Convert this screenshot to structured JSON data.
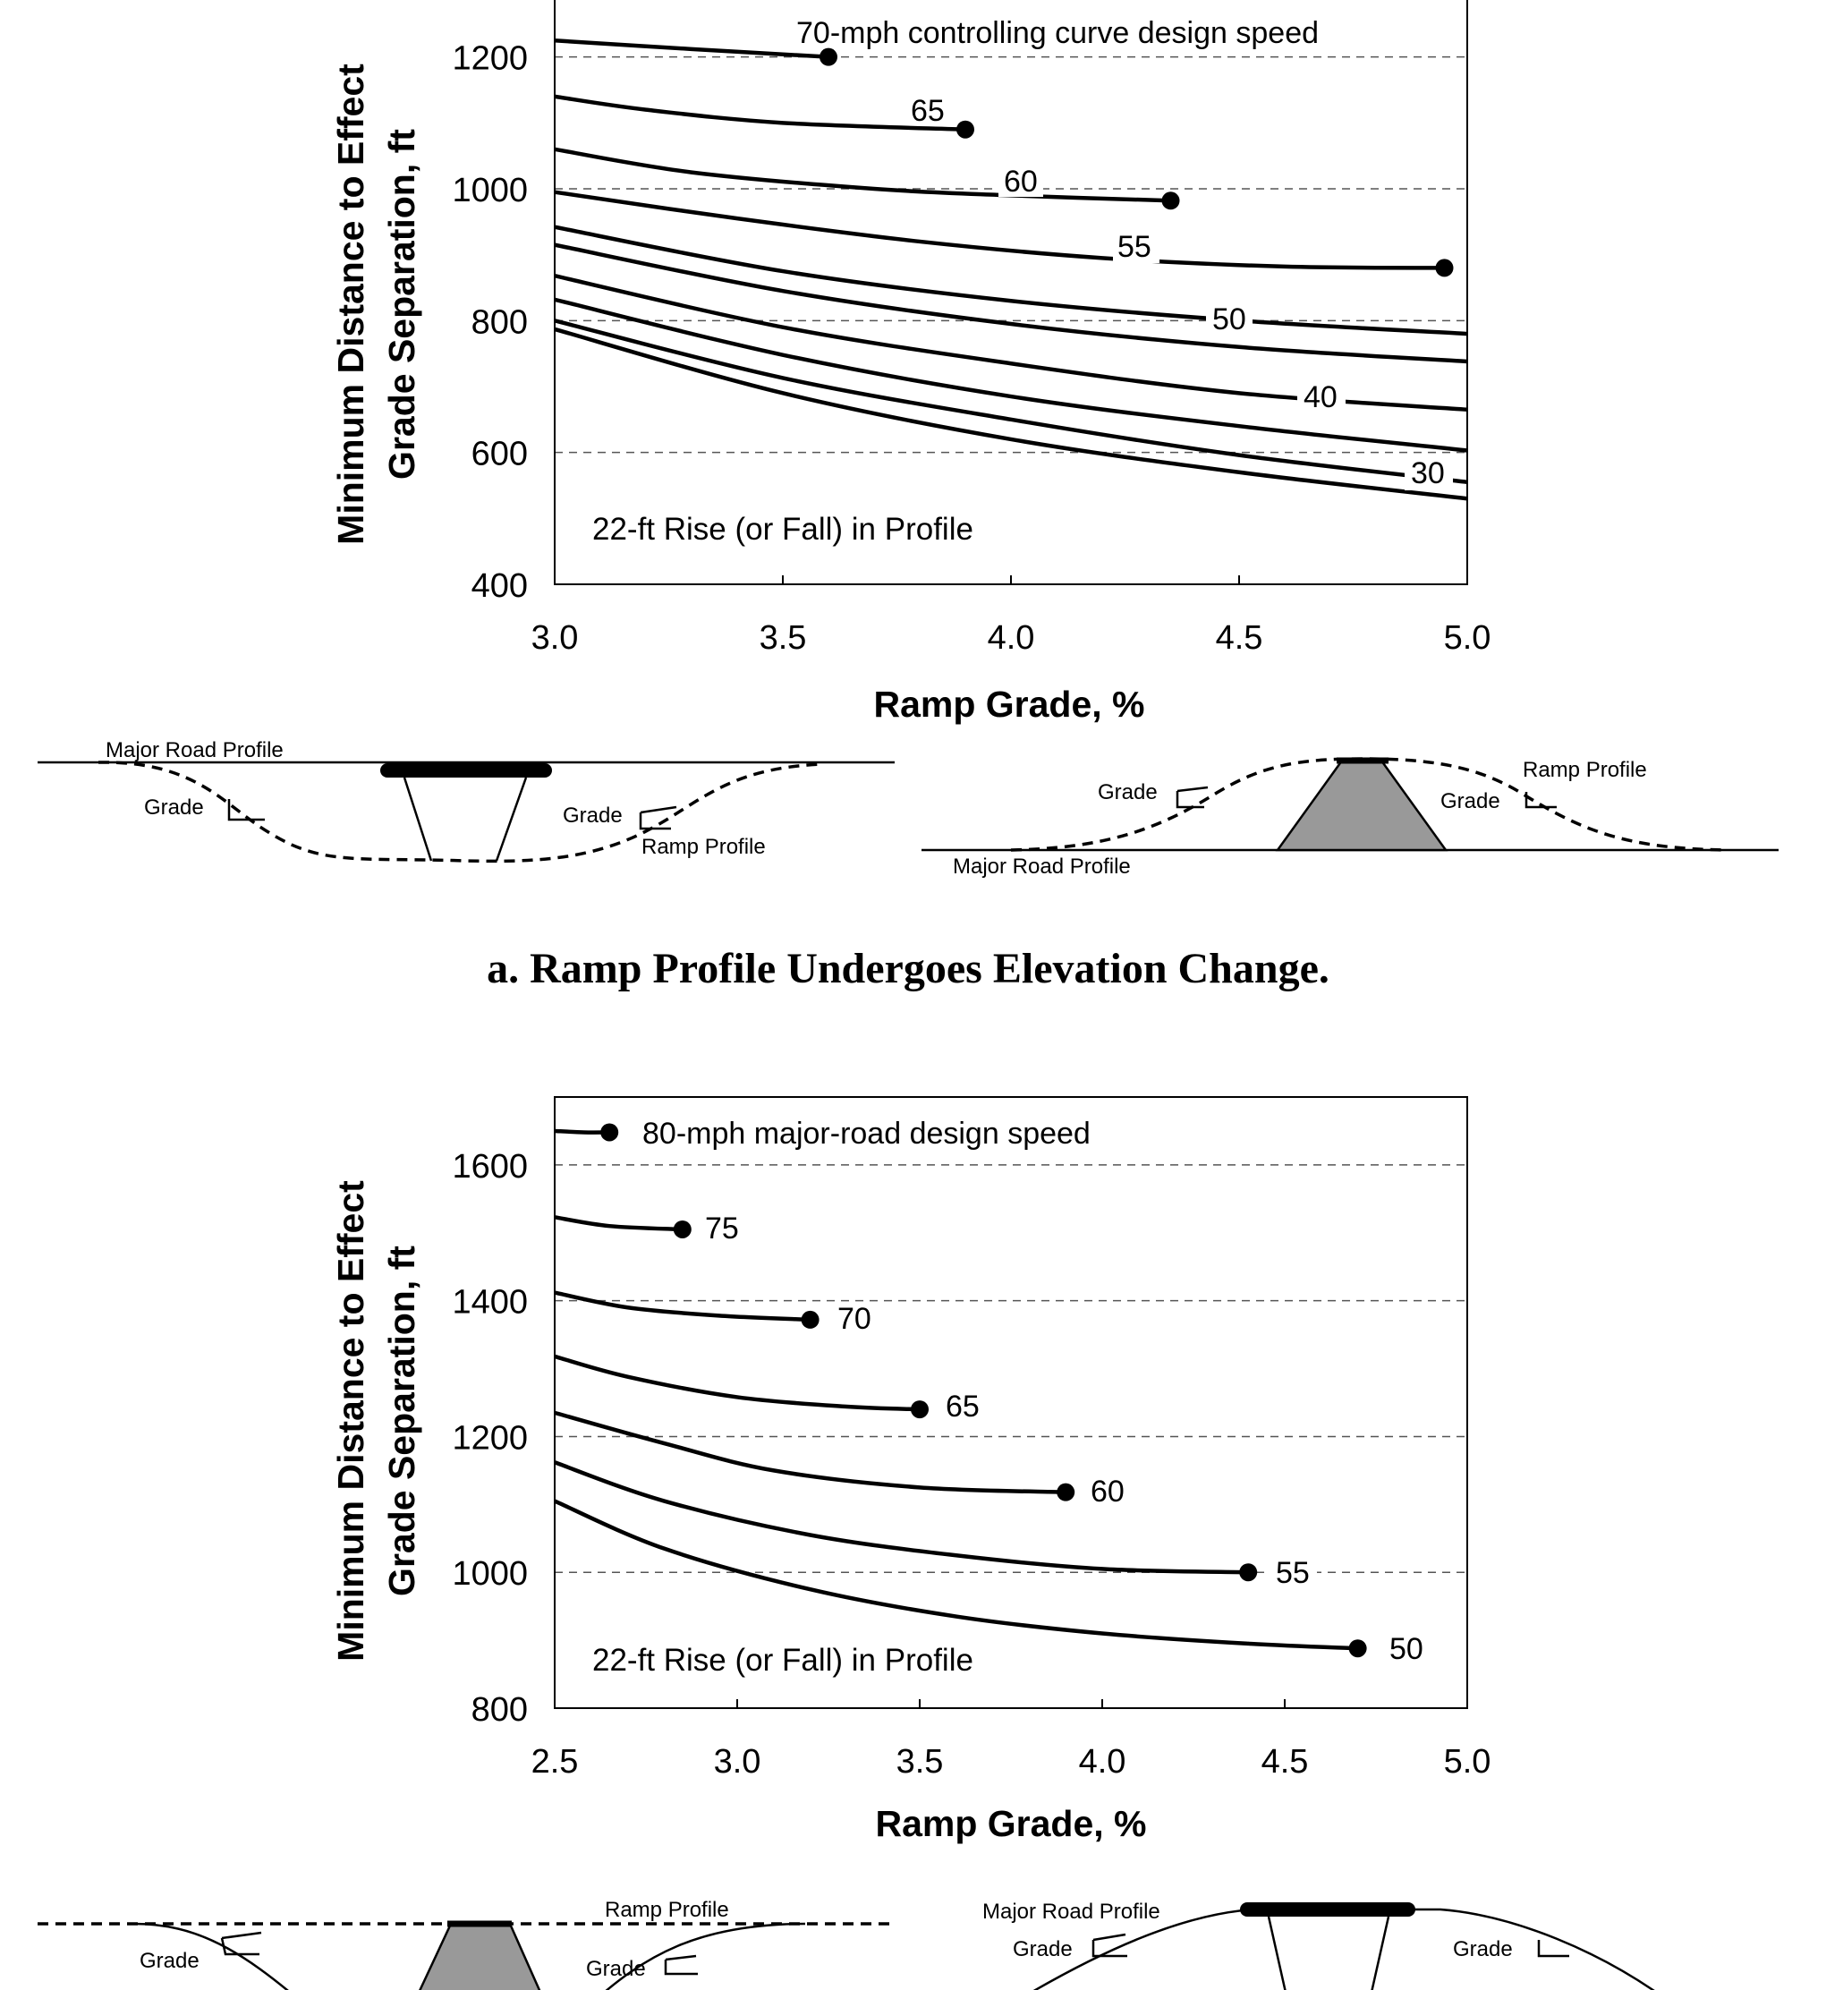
{
  "chart_data": [
    {
      "type": "line",
      "title": "",
      "xlabel": "Ramp Grade, %",
      "ylabel_line1": "Minimum Distance to Effect",
      "ylabel_line2": "Grade Separation, ft",
      "xlim": [
        3.0,
        5.0
      ],
      "ylim": [
        400,
        1300
      ],
      "x_ticks": [
        "3.0",
        "3.5",
        "4.0",
        "4.5",
        "5.0"
      ],
      "y_ticks": [
        "400",
        "600",
        "800",
        "1000",
        "1200"
      ],
      "gridlines_y": [
        600,
        800,
        1000,
        1200
      ],
      "note": "22-ft Rise (or Fall) in Profile",
      "series": [
        {
          "name": "70-mph controlling curve design speed",
          "x": [
            3.0,
            3.3,
            3.6
          ],
          "y": [
            1225,
            1212,
            1200
          ],
          "endpoint": true
        },
        {
          "name": "65",
          "x": [
            3.0,
            3.2,
            3.5,
            3.9
          ],
          "y": [
            1140,
            1120,
            1100,
            1090
          ],
          "endpoint": true
        },
        {
          "name": "60",
          "x": [
            3.0,
            3.3,
            3.7,
            4.0,
            4.35
          ],
          "y": [
            1060,
            1025,
            1000,
            990,
            982
          ],
          "endpoint": true
        },
        {
          "name": "55",
          "x": [
            3.0,
            3.4,
            3.8,
            4.2,
            4.6,
            4.95
          ],
          "y": [
            995,
            955,
            920,
            895,
            882,
            880
          ],
          "endpoint": true
        },
        {
          "name": "50",
          "x": [
            3.0,
            3.5,
            4.0,
            4.5,
            5.0
          ],
          "y": [
            942,
            875,
            830,
            800,
            780
          ]
        },
        {
          "name": "",
          "x": [
            3.0,
            3.5,
            4.0,
            4.5,
            5.0
          ],
          "y": [
            915,
            845,
            795,
            760,
            738
          ]
        },
        {
          "name": "40",
          "x": [
            3.0,
            3.5,
            4.0,
            4.5,
            5.0
          ],
          "y": [
            868,
            790,
            735,
            690,
            665
          ]
        },
        {
          "name": "",
          "x": [
            3.0,
            3.5,
            4.0,
            4.5,
            5.0
          ],
          "y": [
            832,
            748,
            685,
            640,
            603
          ]
        },
        {
          "name": "30",
          "x": [
            3.0,
            3.5,
            4.0,
            4.5,
            5.0
          ],
          "y": [
            800,
            713,
            650,
            596,
            555
          ]
        },
        {
          "name": "",
          "x": [
            3.0,
            3.5,
            4.0,
            4.5,
            5.0
          ],
          "y": [
            787,
            690,
            620,
            570,
            530
          ]
        }
      ]
    },
    {
      "type": "line",
      "title": "",
      "xlabel": "Ramp Grade, %",
      "ylabel_line1": "Minimum Distance to Effect",
      "ylabel_line2": "Grade Separation, ft",
      "xlim": [
        2.5,
        5.0
      ],
      "ylim": [
        800,
        1700
      ],
      "x_ticks": [
        "2.5",
        "3.0",
        "3.5",
        "4.0",
        "4.5",
        "5.0"
      ],
      "y_ticks": [
        "800",
        "1000",
        "1200",
        "1400",
        "1600"
      ],
      "gridlines_y": [
        1000,
        1200,
        1400,
        1600
      ],
      "note": "22-ft Rise (or Fall) in Profile",
      "series": [
        {
          "name": "80-mph major-road design speed",
          "x": [
            2.5,
            2.58,
            2.65
          ],
          "y": [
            1650,
            1648,
            1648
          ],
          "endpoint": true
        },
        {
          "name": "75",
          "x": [
            2.5,
            2.65,
            2.85
          ],
          "y": [
            1523,
            1510,
            1505
          ],
          "endpoint": true
        },
        {
          "name": "70",
          "x": [
            2.5,
            2.7,
            2.95,
            3.2
          ],
          "y": [
            1412,
            1390,
            1378,
            1372
          ],
          "endpoint": true
        },
        {
          "name": "65",
          "x": [
            2.5,
            2.7,
            3.0,
            3.3,
            3.5
          ],
          "y": [
            1318,
            1288,
            1258,
            1244,
            1240
          ],
          "endpoint": true
        },
        {
          "name": "60",
          "x": [
            2.5,
            2.8,
            3.1,
            3.5,
            3.9
          ],
          "y": [
            1235,
            1190,
            1150,
            1125,
            1118
          ],
          "endpoint": true
        },
        {
          "name": "55",
          "x": [
            2.5,
            2.8,
            3.2,
            3.6,
            4.0,
            4.4
          ],
          "y": [
            1162,
            1105,
            1055,
            1025,
            1005,
            1000
          ],
          "endpoint": true
        },
        {
          "name": "50",
          "x": [
            2.5,
            2.8,
            3.2,
            3.6,
            4.0,
            4.4,
            4.7
          ],
          "y": [
            1105,
            1035,
            975,
            935,
            910,
            895,
            888
          ],
          "endpoint": true
        }
      ]
    }
  ],
  "sketches": {
    "major_road_profile": "Major Road Profile",
    "ramp_profile": "Ramp Profile",
    "grade": "Grade"
  },
  "caption_a": "a. Ramp Profile Undergoes Elevation Change."
}
